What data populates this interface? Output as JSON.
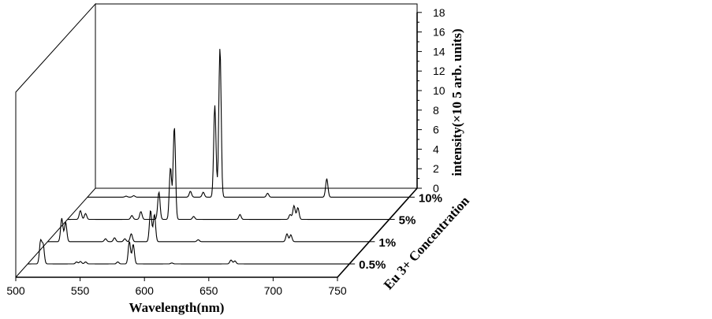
{
  "chart_data": {
    "type": "line",
    "subtype": "3d-waterfall",
    "xlabel": "Wavelength(nm)",
    "ylabel": "Eu 3+ Concentration",
    "zlabel": "intensity(×10 5 arb. units)",
    "xlim": [
      500,
      750
    ],
    "zlim": [
      0,
      18
    ],
    "x_ticks": [
      500,
      550,
      600,
      650,
      700,
      750
    ],
    "z_ticks": [
      0,
      2,
      4,
      6,
      8,
      10,
      12,
      14,
      16,
      18
    ],
    "categories": [
      "0.5%",
      "1%",
      "5%",
      "10%"
    ],
    "series": [
      {
        "name": "0.5%",
        "peaks": [
          {
            "x": 510,
            "y": 2.3
          },
          {
            "x": 512,
            "y": 1.9
          },
          {
            "x": 538,
            "y": 0.2
          },
          {
            "x": 541,
            "y": 0.25
          },
          {
            "x": 545,
            "y": 0.2
          },
          {
            "x": 570,
            "y": 0.2
          },
          {
            "x": 579,
            "y": 2.3
          },
          {
            "x": 582,
            "y": 2.0
          },
          {
            "x": 612,
            "y": 0.1
          },
          {
            "x": 658,
            "y": 0.4
          },
          {
            "x": 661,
            "y": 0.3
          }
        ]
      },
      {
        "name": "1%",
        "peaks": [
          {
            "x": 511,
            "y": 2.4
          },
          {
            "x": 514,
            "y": 2.0
          },
          {
            "x": 545,
            "y": 0.3
          },
          {
            "x": 552,
            "y": 0.4
          },
          {
            "x": 560,
            "y": 0.3
          },
          {
            "x": 565,
            "y": 0.8
          },
          {
            "x": 580,
            "y": 3.2
          },
          {
            "x": 583,
            "y": 2.8
          },
          {
            "x": 617,
            "y": 0.2
          },
          {
            "x": 686,
            "y": 0.8
          },
          {
            "x": 689,
            "y": 0.7
          }
        ]
      },
      {
        "name": "5%",
        "peaks": [
          {
            "x": 510,
            "y": 0.9
          },
          {
            "x": 514,
            "y": 0.6
          },
          {
            "x": 550,
            "y": 0.4
          },
          {
            "x": 557,
            "y": 0.8
          },
          {
            "x": 571,
            "y": 2.8
          },
          {
            "x": 580,
            "y": 5.3
          },
          {
            "x": 583,
            "y": 9.5
          },
          {
            "x": 598,
            "y": 0.3
          },
          {
            "x": 634,
            "y": 0.5
          },
          {
            "x": 673,
            "y": 0.5
          },
          {
            "x": 676,
            "y": 1.4
          },
          {
            "x": 679,
            "y": 1.2
          }
        ]
      },
      {
        "name": "10%",
        "peaks": [
          {
            "x": 530,
            "y": 0.1
          },
          {
            "x": 536,
            "y": 0.15
          },
          {
            "x": 580,
            "y": 0.6
          },
          {
            "x": 590,
            "y": 0.5
          },
          {
            "x": 599,
            "y": 9.4
          },
          {
            "x": 603,
            "y": 15.3
          },
          {
            "x": 640,
            "y": 0.4
          },
          {
            "x": 686,
            "y": 1.9
          }
        ]
      }
    ],
    "grid": false,
    "legend": "none"
  }
}
